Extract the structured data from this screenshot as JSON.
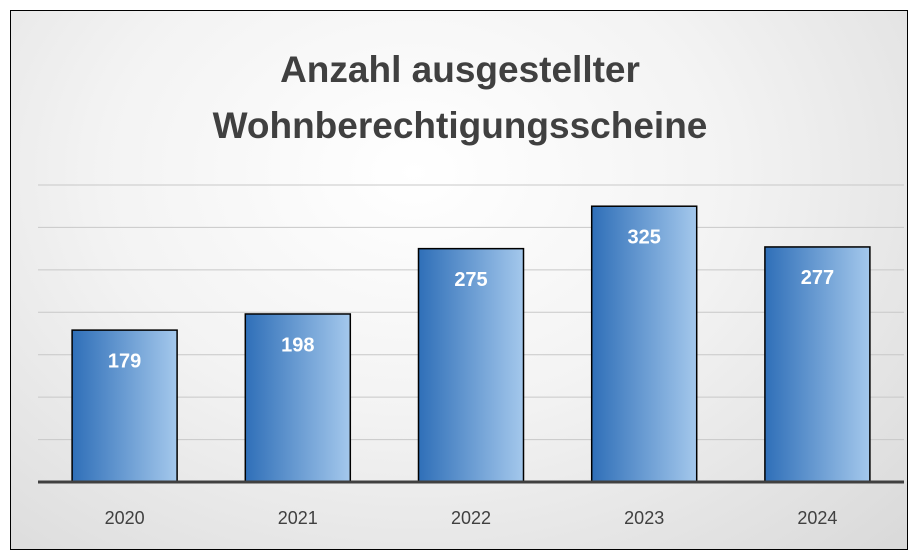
{
  "chart_data": {
    "type": "bar",
    "title": "Anzahl ausgestellter Wohnberechtigungsscheine",
    "categories": [
      "2020",
      "2021",
      "2022",
      "2023",
      "2024"
    ],
    "values": [
      179,
      198,
      275,
      325,
      277
    ],
    "color": "#2f6fb8",
    "ylim": [
      0,
      350
    ],
    "yticks": [
      0,
      50,
      100,
      150,
      200,
      250,
      300,
      350
    ],
    "grid": true
  }
}
